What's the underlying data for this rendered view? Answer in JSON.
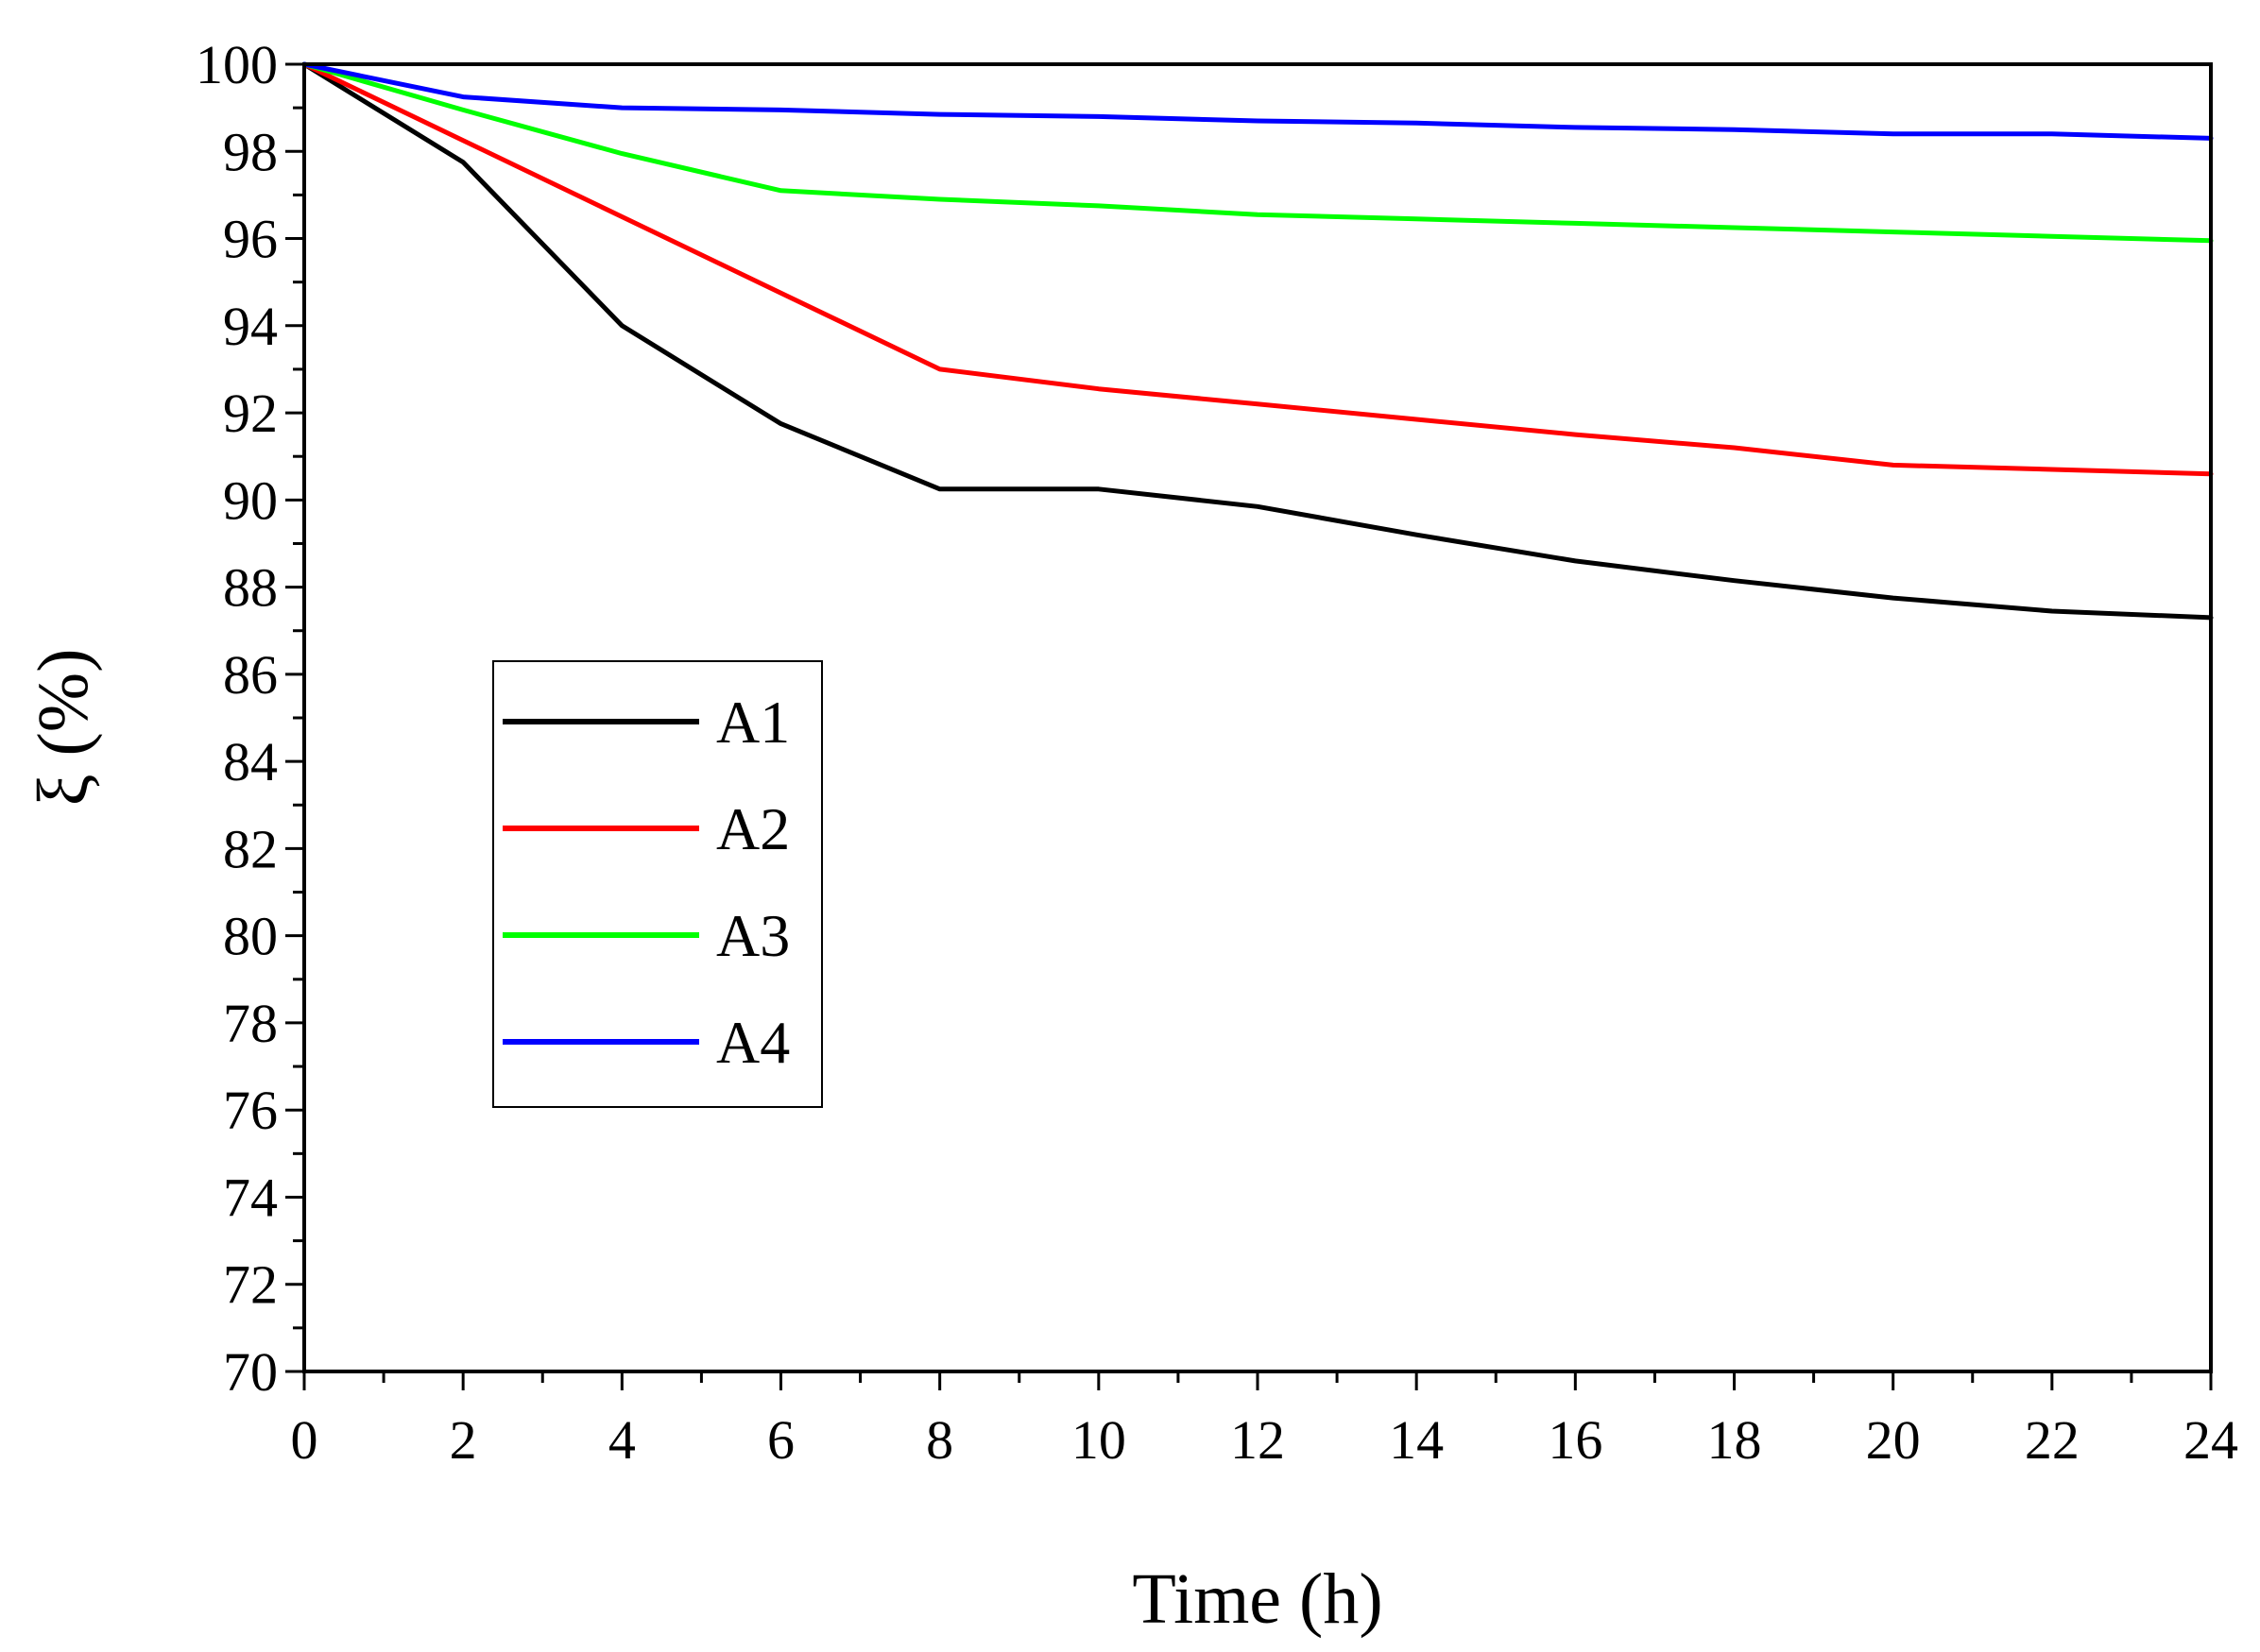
{
  "chart_data": {
    "type": "line",
    "title": "",
    "xlabel": "Time (h)",
    "ylabel": "ξ (%)",
    "xlim": [
      0,
      24
    ],
    "ylim": [
      70,
      100
    ],
    "x_ticks": [
      0,
      2,
      4,
      6,
      8,
      10,
      12,
      14,
      16,
      18,
      20,
      22,
      24
    ],
    "y_ticks": [
      70,
      72,
      74,
      76,
      78,
      80,
      82,
      84,
      86,
      88,
      90,
      92,
      94,
      96,
      98,
      100
    ],
    "grid": false,
    "legend_position": "center-left",
    "series": [
      {
        "name": "A1",
        "color": "#000000",
        "x": [
          0,
          2,
          4,
          6,
          8,
          10,
          12,
          14,
          16,
          18,
          20,
          22,
          24
        ],
        "values": [
          100,
          97.75,
          94.0,
          91.75,
          90.25,
          90.25,
          89.85,
          89.2,
          88.6,
          88.15,
          87.75,
          87.45,
          87.3
        ]
      },
      {
        "name": "A2",
        "color": "#ff0000",
        "x": [
          0,
          2,
          4,
          6,
          8,
          10,
          12,
          14,
          16,
          18,
          20,
          22,
          24
        ],
        "values": [
          100,
          98.25,
          96.5,
          94.75,
          93.0,
          92.55,
          92.2,
          91.85,
          91.5,
          91.2,
          90.8,
          90.7,
          90.6
        ]
      },
      {
        "name": "A3",
        "color": "#00ff00",
        "x": [
          0,
          2,
          4,
          6,
          8,
          10,
          12,
          14,
          16,
          18,
          20,
          22,
          24
        ],
        "values": [
          100,
          98.95,
          97.95,
          97.1,
          96.9,
          96.75,
          96.55,
          96.45,
          96.35,
          96.25,
          96.15,
          96.05,
          95.95
        ]
      },
      {
        "name": "A4",
        "color": "#0000ff",
        "x": [
          0,
          2,
          4,
          6,
          8,
          10,
          12,
          14,
          16,
          18,
          20,
          22,
          24
        ],
        "values": [
          100,
          99.25,
          99.0,
          98.95,
          98.85,
          98.8,
          98.7,
          98.65,
          98.55,
          98.5,
          98.4,
          98.4,
          98.3
        ]
      }
    ]
  }
}
